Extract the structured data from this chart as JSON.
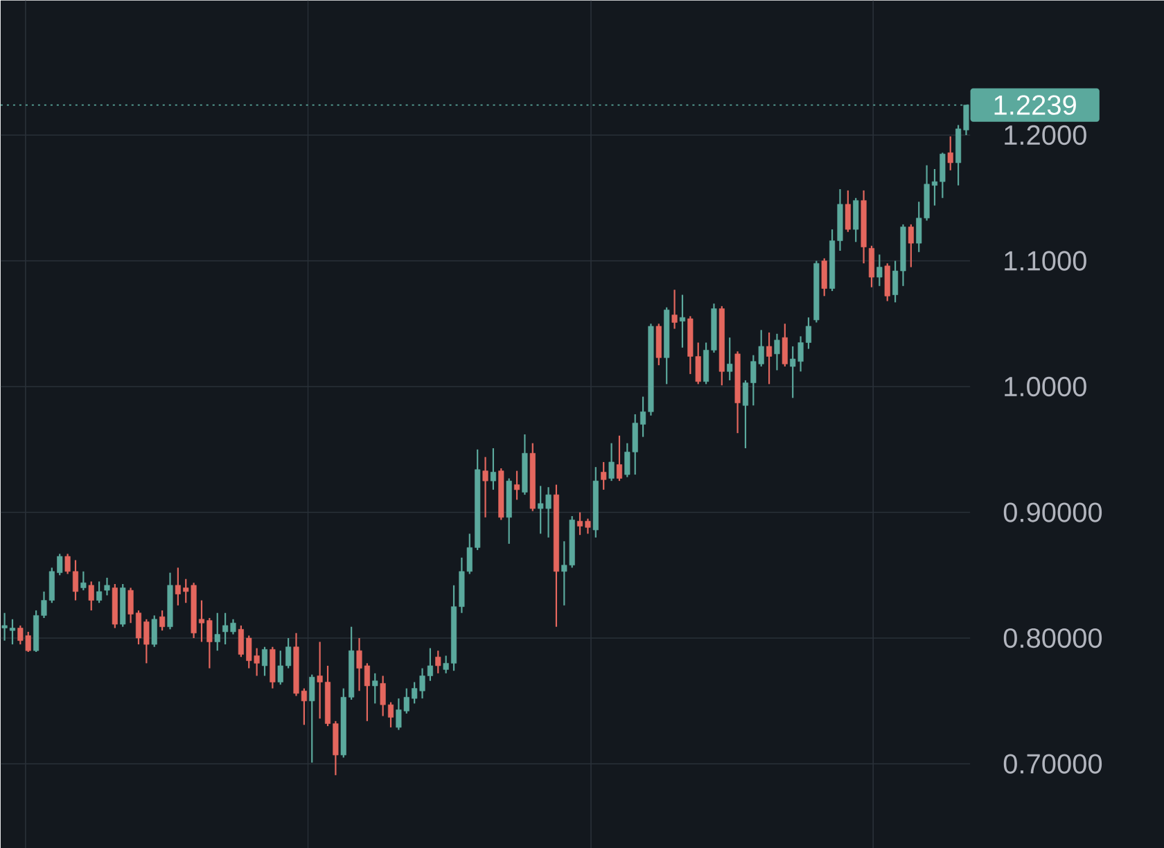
{
  "chart_data": {
    "type": "candlestick",
    "categories": [
      null,
      null,
      null,
      null,
      null,
      null,
      null,
      null,
      null,
      null,
      null,
      null,
      null,
      null,
      null,
      null,
      null,
      null,
      null,
      null,
      null,
      null,
      null,
      null,
      null,
      null,
      null,
      null,
      null,
      null,
      null,
      null,
      null,
      null,
      null,
      null,
      null,
      null,
      null,
      null,
      null,
      null,
      null,
      null,
      null,
      null,
      null,
      null,
      null,
      null,
      null,
      null,
      null,
      null,
      null,
      null,
      null,
      null,
      null,
      null,
      null,
      null,
      null,
      null,
      null,
      null,
      null,
      null,
      null,
      null,
      null,
      null,
      null,
      null,
      null,
      null,
      null,
      null,
      null,
      null,
      null,
      null,
      null,
      null,
      null,
      null,
      null,
      null,
      null,
      null,
      null,
      null,
      null,
      null,
      null,
      null,
      null,
      null,
      null,
      null,
      null,
      null,
      null,
      null,
      null,
      null,
      null,
      null,
      null,
      null,
      null,
      null,
      null,
      null,
      null,
      null,
      null,
      null,
      null,
      null,
      null,
      null,
      null
    ],
    "ohlc": [
      [
        0.808,
        0.82,
        0.798,
        0.81
      ],
      [
        0.806,
        0.815,
        0.795,
        0.808
      ],
      [
        0.808,
        0.81,
        0.795,
        0.798
      ],
      [
        0.802,
        0.805,
        0.789,
        0.79
      ],
      [
        0.79,
        0.822,
        0.789,
        0.818
      ],
      [
        0.818,
        0.837,
        0.816,
        0.83
      ],
      [
        0.83,
        0.856,
        0.828,
        0.853
      ],
      [
        0.852,
        0.867,
        0.85,
        0.865
      ],
      [
        0.865,
        0.867,
        0.851,
        0.853
      ],
      [
        0.853,
        0.862,
        0.83,
        0.837
      ],
      [
        0.84,
        0.853,
        0.838,
        0.844
      ],
      [
        0.842,
        0.845,
        0.822,
        0.83
      ],
      [
        0.83,
        0.845,
        0.828,
        0.837
      ],
      [
        0.838,
        0.848,
        0.834,
        0.842
      ],
      [
        0.84,
        0.843,
        0.808,
        0.811
      ],
      [
        0.811,
        0.843,
        0.809,
        0.84
      ],
      [
        0.838,
        0.84,
        0.812,
        0.819
      ],
      [
        0.82,
        0.822,
        0.795,
        0.8
      ],
      [
        0.813,
        0.815,
        0.78,
        0.795
      ],
      [
        0.795,
        0.818,
        0.793,
        0.815
      ],
      [
        0.817,
        0.822,
        0.806,
        0.809
      ],
      [
        0.809,
        0.852,
        0.807,
        0.842
      ],
      [
        0.842,
        0.856,
        0.826,
        0.835
      ],
      [
        0.84,
        0.847,
        0.828,
        0.837
      ],
      [
        0.842,
        0.844,
        0.8,
        0.804
      ],
      [
        0.815,
        0.83,
        0.797,
        0.812
      ],
      [
        0.814,
        0.816,
        0.776,
        0.797
      ],
      [
        0.797,
        0.82,
        0.79,
        0.803
      ],
      [
        0.805,
        0.82,
        0.795,
        0.81
      ],
      [
        0.805,
        0.815,
        0.803,
        0.812
      ],
      [
        0.807,
        0.81,
        0.785,
        0.787
      ],
      [
        0.8,
        0.802,
        0.776,
        0.782
      ],
      [
        0.786,
        0.792,
        0.77,
        0.78
      ],
      [
        0.778,
        0.793,
        0.77,
        0.791
      ],
      [
        0.791,
        0.793,
        0.76,
        0.765
      ],
      [
        0.765,
        0.79,
        0.763,
        0.778
      ],
      [
        0.778,
        0.8,
        0.776,
        0.793
      ],
      [
        0.793,
        0.804,
        0.754,
        0.756
      ],
      [
        0.758,
        0.76,
        0.731,
        0.75
      ],
      [
        0.75,
        0.771,
        0.701,
        0.769
      ],
      [
        0.77,
        0.797,
        0.736,
        0.765
      ],
      [
        0.765,
        0.778,
        0.73,
        0.732
      ],
      [
        0.732,
        0.734,
        0.691,
        0.707
      ],
      [
        0.707,
        0.76,
        0.705,
        0.753
      ],
      [
        0.753,
        0.809,
        0.751,
        0.79
      ],
      [
        0.79,
        0.8,
        0.758,
        0.776
      ],
      [
        0.778,
        0.78,
        0.734,
        0.762
      ],
      [
        0.762,
        0.772,
        0.748,
        0.766
      ],
      [
        0.764,
        0.77,
        0.738,
        0.747
      ],
      [
        0.747,
        0.749,
        0.729,
        0.737
      ],
      [
        0.729,
        0.752,
        0.727,
        0.743
      ],
      [
        0.742,
        0.76,
        0.74,
        0.753
      ],
      [
        0.752,
        0.765,
        0.748,
        0.76
      ],
      [
        0.758,
        0.776,
        0.752,
        0.77
      ],
      [
        0.77,
        0.792,
        0.766,
        0.778
      ],
      [
        0.785,
        0.79,
        0.772,
        0.778
      ],
      [
        0.775,
        0.786,
        0.772,
        0.78
      ],
      [
        0.78,
        0.842,
        0.774,
        0.825
      ],
      [
        0.825,
        0.864,
        0.82,
        0.853
      ],
      [
        0.853,
        0.883,
        0.851,
        0.872
      ],
      [
        0.872,
        0.95,
        0.87,
        0.934
      ],
      [
        0.933,
        0.944,
        0.896,
        0.925
      ],
      [
        0.925,
        0.951,
        0.918,
        0.932
      ],
      [
        0.933,
        0.935,
        0.894,
        0.896
      ],
      [
        0.896,
        0.927,
        0.875,
        0.925
      ],
      [
        0.922,
        0.933,
        0.91,
        0.918
      ],
      [
        0.916,
        0.962,
        0.914,
        0.947
      ],
      [
        0.947,
        0.955,
        0.901,
        0.903
      ],
      [
        0.903,
        0.921,
        0.883,
        0.907
      ],
      [
        0.903,
        0.92,
        0.88,
        0.914
      ],
      [
        0.914,
        0.922,
        0.809,
        0.853
      ],
      [
        0.853,
        0.877,
        0.826,
        0.858
      ],
      [
        0.858,
        0.897,
        0.856,
        0.894
      ],
      [
        0.893,
        0.9,
        0.882,
        0.889
      ],
      [
        0.893,
        0.895,
        0.883,
        0.888
      ],
      [
        0.886,
        0.936,
        0.88,
        0.925
      ],
      [
        0.932,
        0.94,
        0.918,
        0.926
      ],
      [
        0.927,
        0.955,
        0.925,
        0.94
      ],
      [
        0.938,
        0.961,
        0.925,
        0.927
      ],
      [
        0.93,
        0.955,
        0.928,
        0.948
      ],
      [
        0.948,
        0.978,
        0.93,
        0.971
      ],
      [
        0.97,
        0.992,
        0.96,
        0.98
      ],
      [
        0.98,
        1.05,
        0.977,
        1.048
      ],
      [
        1.048,
        1.05,
        1.017,
        1.023
      ],
      [
        1.023,
        1.063,
        1.002,
        1.061
      ],
      [
        1.057,
        1.077,
        1.046,
        1.051
      ],
      [
        1.052,
        1.073,
        1.031,
        1.055
      ],
      [
        1.054,
        1.056,
        1.01,
        1.024
      ],
      [
        1.024,
        1.035,
        1.002,
        1.004
      ],
      [
        1.004,
        1.035,
        1.002,
        1.029
      ],
      [
        1.029,
        1.066,
        1.027,
        1.062
      ],
      [
        1.062,
        1.064,
        1.001,
        1.012
      ],
      [
        1.012,
        1.039,
        1.005,
        1.018
      ],
      [
        1.026,
        1.028,
        0.963,
        0.987
      ],
      [
        0.985,
        1.005,
        0.951,
        1.003
      ],
      [
        1.003,
        1.025,
        0.985,
        1.02
      ],
      [
        1.018,
        1.045,
        1.016,
        1.032
      ],
      [
        1.032,
        1.043,
        1.002,
        1.024
      ],
      [
        1.026,
        1.042,
        1.013,
        1.037
      ],
      [
        1.039,
        1.05,
        1.016,
        1.018
      ],
      [
        1.016,
        1.032,
        0.991,
        1.022
      ],
      [
        1.02,
        1.04,
        1.012,
        1.035
      ],
      [
        1.035,
        1.055,
        1.03,
        1.048
      ],
      [
        1.053,
        1.1,
        1.051,
        1.098
      ],
      [
        1.1,
        1.102,
        1.072,
        1.078
      ],
      [
        1.078,
        1.125,
        1.076,
        1.116
      ],
      [
        1.116,
        1.157,
        1.108,
        1.145
      ],
      [
        1.145,
        1.156,
        1.123,
        1.125
      ],
      [
        1.125,
        1.15,
        1.115,
        1.148
      ],
      [
        1.148,
        1.156,
        1.098,
        1.111
      ],
      [
        1.11,
        1.112,
        1.079,
        1.087
      ],
      [
        1.087,
        1.105,
        1.08,
        1.095
      ],
      [
        1.096,
        1.098,
        1.068,
        1.072
      ],
      [
        1.073,
        1.1,
        1.067,
        1.092
      ],
      [
        1.092,
        1.129,
        1.08,
        1.127
      ],
      [
        1.127,
        1.129,
        1.095,
        1.114
      ],
      [
        1.114,
        1.147,
        1.107,
        1.134
      ],
      [
        1.134,
        1.176,
        1.132,
        1.161
      ],
      [
        1.16,
        1.173,
        1.144,
        1.163
      ],
      [
        1.163,
        1.186,
        1.15,
        1.185
      ],
      [
        1.186,
        1.199,
        1.172,
        1.178
      ],
      [
        1.178,
        1.208,
        1.16,
        1.205
      ],
      [
        1.204,
        1.224,
        1.2,
        1.2239
      ]
    ],
    "colors": [
      "#5ba99d",
      "#5ba99d",
      "#e4675e",
      "#e4675e",
      "#5ba99d",
      "#5ba99d",
      "#5ba99d",
      "#5ba99d",
      "#e4675e",
      "#e4675e",
      "#5ba99d",
      "#e4675e",
      "#5ba99d",
      "#5ba99d",
      "#e4675e",
      "#5ba99d",
      "#e4675e",
      "#e4675e",
      "#e4675e",
      "#5ba99d",
      "#e4675e",
      "#5ba99d",
      "#e4675e",
      "#e4675e",
      "#e4675e",
      "#e4675e",
      "#e4675e",
      "#5ba99d",
      "#5ba99d",
      "#5ba99d",
      "#e4675e",
      "#e4675e",
      "#e4675e",
      "#5ba99d",
      "#e4675e",
      "#5ba99d",
      "#5ba99d",
      "#e4675e",
      "#e4675e",
      "#5ba99d",
      "#e4675e",
      "#e4675e",
      "#e4675e",
      "#5ba99d",
      "#5ba99d",
      "#e4675e",
      "#e4675e",
      "#5ba99d",
      "#e4675e",
      "#e4675e",
      "#5ba99d",
      "#5ba99d",
      "#5ba99d",
      "#5ba99d",
      "#5ba99d",
      "#e4675e",
      "#5ba99d",
      "#5ba99d",
      "#5ba99d",
      "#5ba99d",
      "#5ba99d",
      "#e4675e",
      "#5ba99d",
      "#e4675e",
      "#5ba99d",
      "#e4675e",
      "#5ba99d",
      "#e4675e",
      "#5ba99d",
      "#5ba99d",
      "#e4675e",
      "#5ba99d",
      "#5ba99d",
      "#e4675e",
      "#e4675e",
      "#5ba99d",
      "#e4675e",
      "#5ba99d",
      "#e4675e",
      "#5ba99d",
      "#5ba99d",
      "#5ba99d",
      "#5ba99d",
      "#e4675e",
      "#5ba99d",
      "#e4675e",
      "#5ba99d",
      "#e4675e",
      "#e4675e",
      "#5ba99d",
      "#5ba99d",
      "#e4675e",
      "#5ba99d",
      "#e4675e",
      "#5ba99d",
      "#5ba99d",
      "#5ba99d",
      "#e4675e",
      "#5ba99d",
      "#e4675e",
      "#5ba99d",
      "#5ba99d",
      "#5ba99d",
      "#5ba99d",
      "#e4675e",
      "#5ba99d",
      "#5ba99d",
      "#e4675e",
      "#5ba99d",
      "#e4675e",
      "#e4675e",
      "#5ba99d",
      "#e4675e",
      "#5ba99d",
      "#5ba99d",
      "#e4675e",
      "#5ba99d",
      "#5ba99d",
      "#5ba99d",
      "#5ba99d",
      "#e4675e",
      "#5ba99d",
      "#5ba99d"
    ],
    "ylim": [
      0.633,
      1.307
    ],
    "yticks": [
      {
        "value": 0.7,
        "label": "0.70000"
      },
      {
        "value": 0.8,
        "label": "0.80000"
      },
      {
        "value": 0.9,
        "label": "0.90000"
      },
      {
        "value": 1.0,
        "label": "1.0000"
      },
      {
        "value": 1.1,
        "label": "1.1000"
      },
      {
        "value": 1.2,
        "label": "1.2000"
      }
    ],
    "grid": "y",
    "tick_labels": "y",
    "ref_lines": [
      {
        "axis": "y",
        "value": 1.2239,
        "label": "1.2239",
        "color": "#5ba99d",
        "line_style": "dotted"
      }
    ]
  }
}
